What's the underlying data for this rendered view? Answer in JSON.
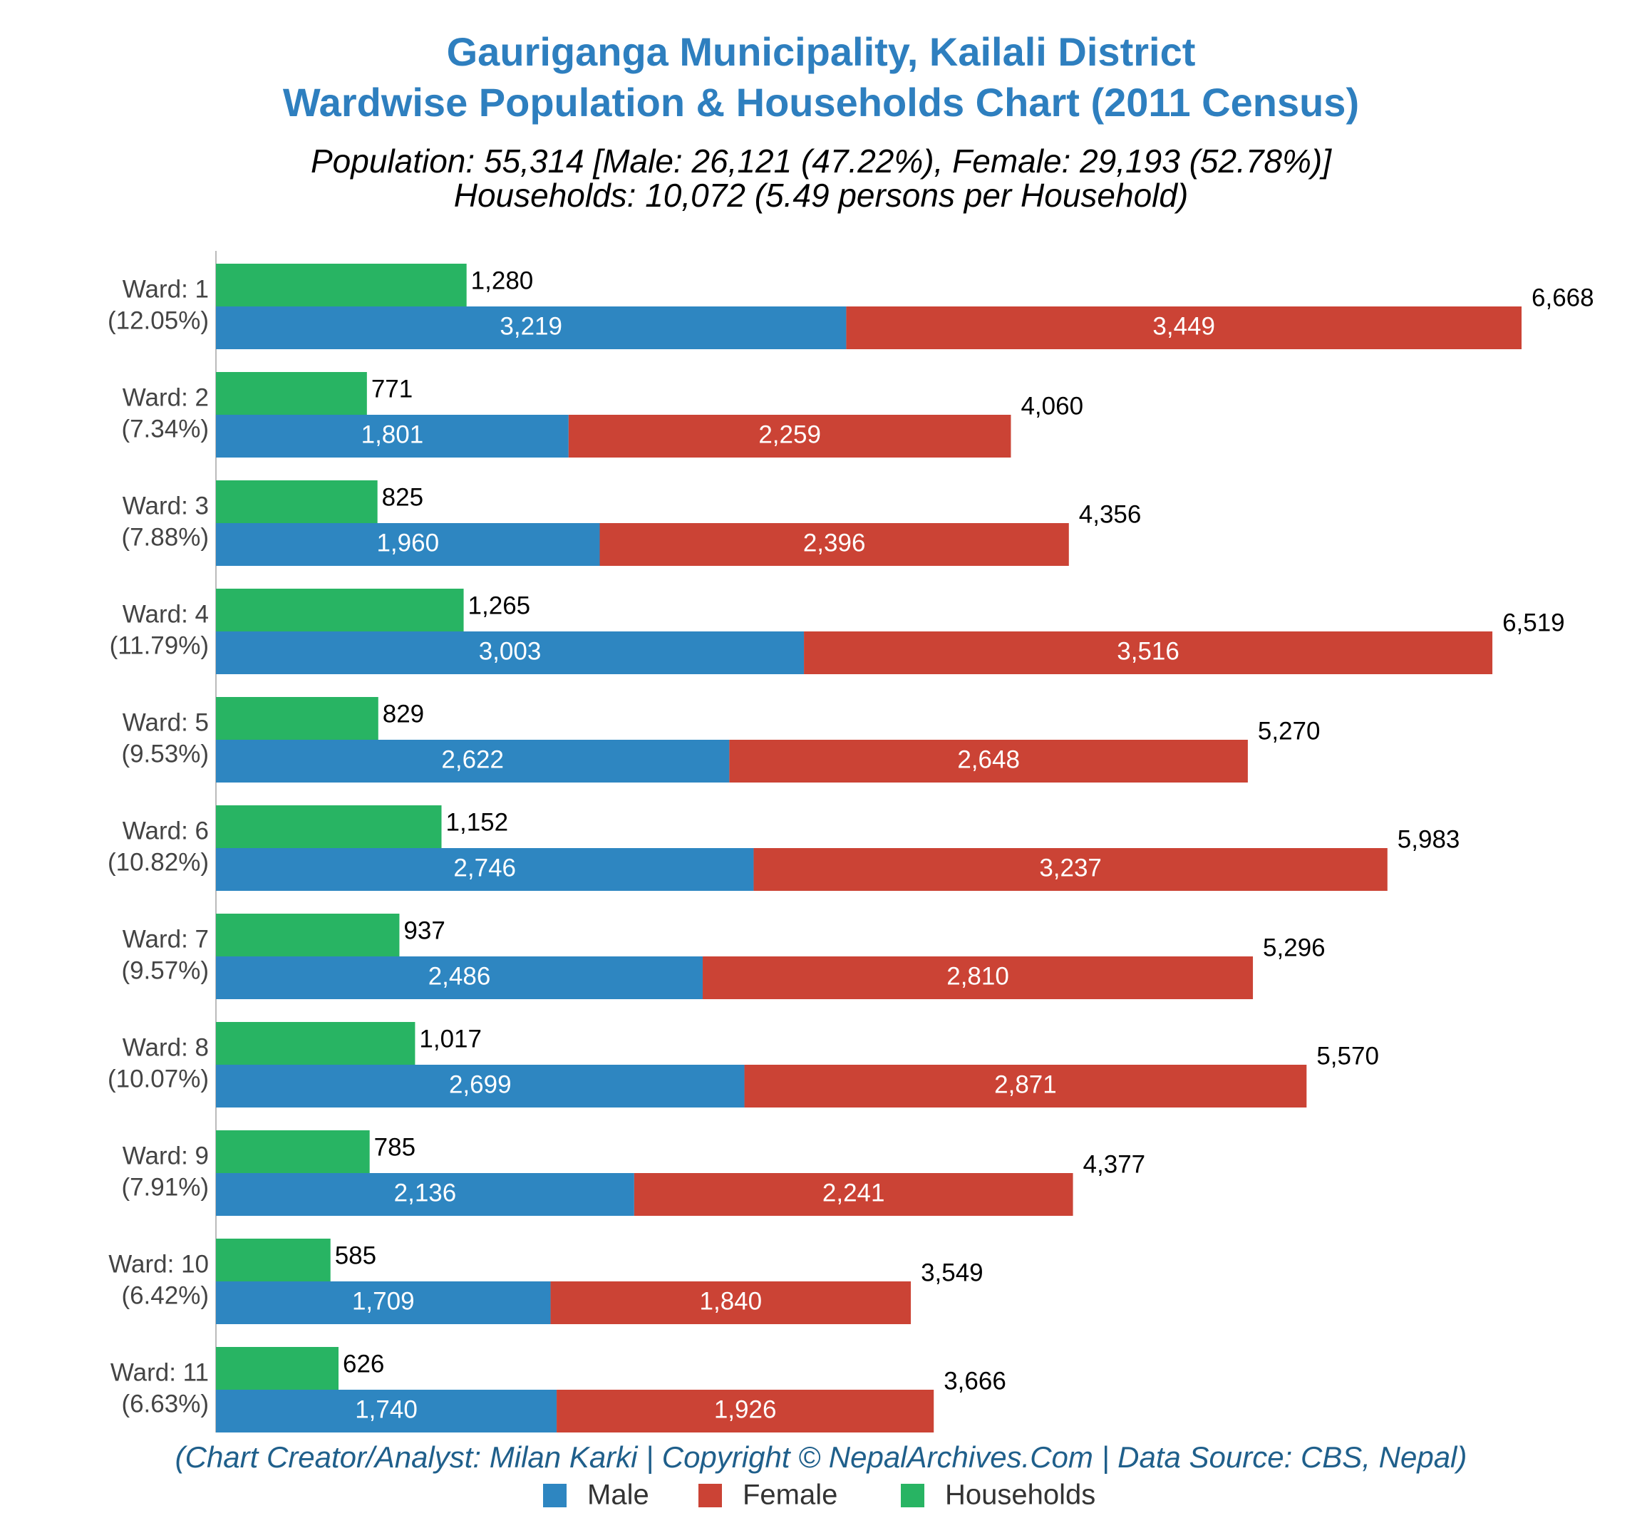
{
  "chart_data": {
    "type": "bar",
    "orientation": "horizontal",
    "title": [
      "Gauriganga Municipality, Kailali District",
      "Wardwise Population & Households Chart (2011 Census)"
    ],
    "subtitle": [
      "Population: 55,314 [Male: 26,121 (47.22%), Female: 29,193 (52.78%)]",
      "Households: 10,072 (5.49 persons per Household)"
    ],
    "footer": "(Chart Creator/Analyst: Milan Karki | Copyright © NepalArchives.Com | Data Source: CBS, Nepal)",
    "categories": [
      "Ward: 1",
      "Ward: 2",
      "Ward: 3",
      "Ward: 4",
      "Ward: 5",
      "Ward: 6",
      "Ward: 7",
      "Ward: 8",
      "Ward: 9",
      "Ward: 10",
      "Ward: 11"
    ],
    "category_notes": [
      "(12.05%)",
      "(7.34%)",
      "(7.88%)",
      "(11.79%)",
      "(9.53%)",
      "(10.82%)",
      "(9.57%)",
      "(10.07%)",
      "(7.91%)",
      "(6.42%)",
      "(6.63%)"
    ],
    "series": [
      {
        "name": "Male",
        "color": "#2e86c1",
        "stack": "population",
        "values": [
          3219,
          1801,
          1960,
          3003,
          2622,
          2746,
          2486,
          2699,
          2136,
          1709,
          1740
        ],
        "value_labels": [
          "3,219",
          "1,801",
          "1,960",
          "3,003",
          "2,622",
          "2,746",
          "2,486",
          "2,699",
          "2,136",
          "1,709",
          "1,740"
        ]
      },
      {
        "name": "Female",
        "color": "#cb4335",
        "stack": "population",
        "values": [
          3449,
          2259,
          2396,
          3516,
          2648,
          3237,
          2810,
          2871,
          2241,
          1840,
          1926
        ],
        "value_labels": [
          "3,449",
          "2,259",
          "2,396",
          "3,516",
          "2,648",
          "3,237",
          "2,810",
          "2,871",
          "2,241",
          "1,840",
          "1,926"
        ]
      },
      {
        "name": "Households",
        "color": "#28b463",
        "stack": "households",
        "values": [
          1280,
          771,
          825,
          1265,
          829,
          1152,
          937,
          1017,
          785,
          585,
          626
        ],
        "value_labels": [
          "1,280",
          "771",
          "825",
          "1,265",
          "829",
          "1,152",
          "937",
          "1,017",
          "785",
          "585",
          "626"
        ]
      }
    ],
    "totals": [
      6668,
      4060,
      4356,
      6519,
      5270,
      5983,
      5296,
      5570,
      4377,
      3549,
      3666
    ],
    "total_labels": [
      "6,668",
      "4,060",
      "4,356",
      "6,519",
      "5,270",
      "5,983",
      "5,296",
      "5,570",
      "4,377",
      "3,549",
      "3,666"
    ],
    "legend": "bottom"
  }
}
